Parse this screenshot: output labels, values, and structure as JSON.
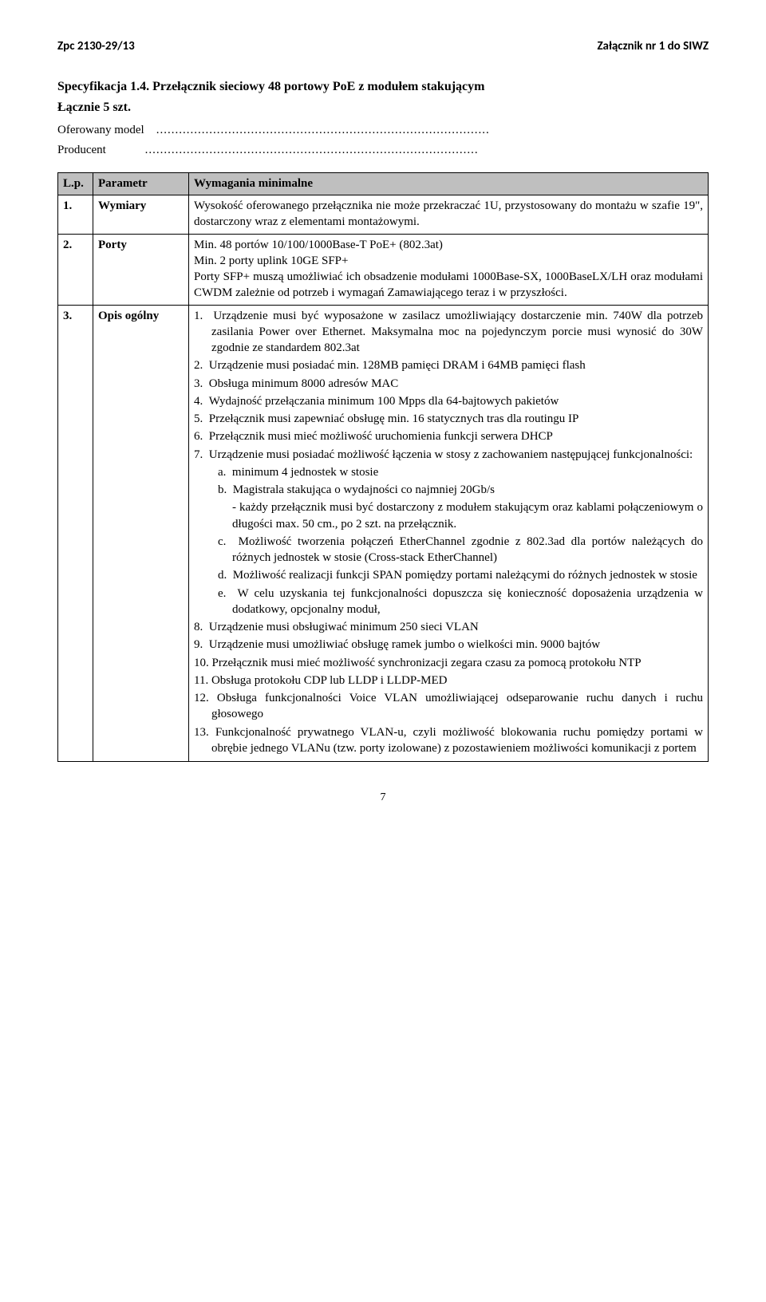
{
  "header": {
    "left": "Zpc 2130-29/13",
    "right": "Załącznik nr 1 do SIWZ"
  },
  "spec": {
    "title": "Specyfikacja 1.4. Przełącznik sieciowy 48 portowy PoE z modułem stakującym",
    "subtitle": "Łącznie 5 szt.",
    "offered_model_label": "Oferowany model",
    "producer_label": "Producent",
    "dots": "........................................................................................"
  },
  "table": {
    "head": {
      "lp": "L.p.",
      "param": "Parametr",
      "req": "Wymagania minimalne"
    },
    "rows": [
      {
        "lp": "1.",
        "param": "Wymiary",
        "req_html": "<p>Wysokość oferowanego przełącznika nie może przekraczać 1U, przystosowany do montażu w szafie 19\", dostarczony wraz z elementami montażowymi.</p>"
      },
      {
        "lp": "2.",
        "param": "Porty",
        "req_html": "<p>Min. 48 portów 10/100/1000Base-T PoE+ (802.3at)</p><p>Min. 2 porty uplink 10GE SFP+</p><p>Porty SFP+ muszą umożliwiać ich obsadzenie modułami 1000Base-SX, 1000BaseLX/LH oraz modułami CWDM zależnie od potrzeb i wymagań Zamawiającego teraz i w przyszłości.</p>"
      },
      {
        "lp": "3.",
        "param": "Opis ogólny",
        "req_html": "<ol><li class=\"lvl1\">1.&nbsp;&nbsp;Urządzenie musi być wyposażone w zasilacz umożliwiający dostarczenie min. 740W dla potrzeb zasilania Power over Ethernet. Maksymalna moc na pojedynczym porcie musi wynosić do 30W zgodnie ze standardem 802.3at</li><li class=\"lvl1\">2.&nbsp;&nbsp;Urządzenie musi posiadać min. 128MB pamięci DRAM i 64MB pamięci flash</li><li class=\"lvl1\">3.&nbsp;&nbsp;Obsługa minimum 8000 adresów MAC</li><li class=\"lvl1\">4.&nbsp;&nbsp;Wydajność przełączania minimum 100 Mpps dla 64-bajtowych pakietów</li><li class=\"lvl1\">5.&nbsp;&nbsp;Przełącznik musi zapewniać obsługę min. 16 statycznych tras dla routingu IP</li><li class=\"lvl1\">6.&nbsp;&nbsp;Przełącznik musi mieć możliwość uruchomienia funkcji serwera DHCP</li><li class=\"lvl1\">7.&nbsp;&nbsp;Urządzenie musi posiadać możliwość łączenia w stosy z zachowaniem następującej funkcjonalności:</li><li class=\"lvl2\">a.&nbsp;&nbsp;minimum 4 jednostek w stosie</li><li class=\"lvl2\">b.&nbsp;&nbsp;Magistrala stakująca o wydajności co najmniej 20Gb/s</li><li class=\"cont\">- każdy przełącznik musi być dostarczony z modułem stakującym oraz kablami połączeniowym o długości max. 50 cm., po 2 szt. na przełącznik.</li><li class=\"lvl2\">c.&nbsp;&nbsp;Możliwość tworzenia połączeń EtherChannel zgodnie z 802.3ad dla portów należących do różnych jednostek w stosie (Cross-stack EtherChannel)</li><li class=\"lvl2\">d.&nbsp;&nbsp;Możliwość realizacji funkcji SPAN pomiędzy portami należącymi do różnych jednostek w stosie</li><li class=\"lvl2\">e.&nbsp;&nbsp;W celu uzyskania tej funkcjonalności dopuszcza się konieczność doposażenia urządzenia w dodatkowy, opcjonalny moduł,</li><li class=\"lvl1\">8.&nbsp;&nbsp;Urządzenie musi obsługiwać minimum 250 sieci VLAN</li><li class=\"lvl1\">9.&nbsp;&nbsp;Urządzenie musi umożliwiać obsługę ramek jumbo o wielkości min. 9000 bajtów</li><li class=\"lvl1\">10.&nbsp;Przełącznik musi mieć możliwość synchronizacji zegara czasu za pomocą protokołu NTP</li><li class=\"lvl1\">11.&nbsp;Obsługa protokołu CDP lub LLDP i LLDP-MED</li><li class=\"lvl1\">12.&nbsp;Obsługa funkcjonalności Voice VLAN umożliwiającej odseparowanie ruchu danych i ruchu głosowego</li><li class=\"lvl1\">13.&nbsp;Funkcjonalność prywatnego VLAN-u, czyli możliwość blokowania ruchu pomiędzy portami w obrębie jednego VLANu (tzw. porty izolowane) z pozostawieniem możliwości komunikacji z portem</li></ol>"
      }
    ]
  },
  "page_number": "7"
}
